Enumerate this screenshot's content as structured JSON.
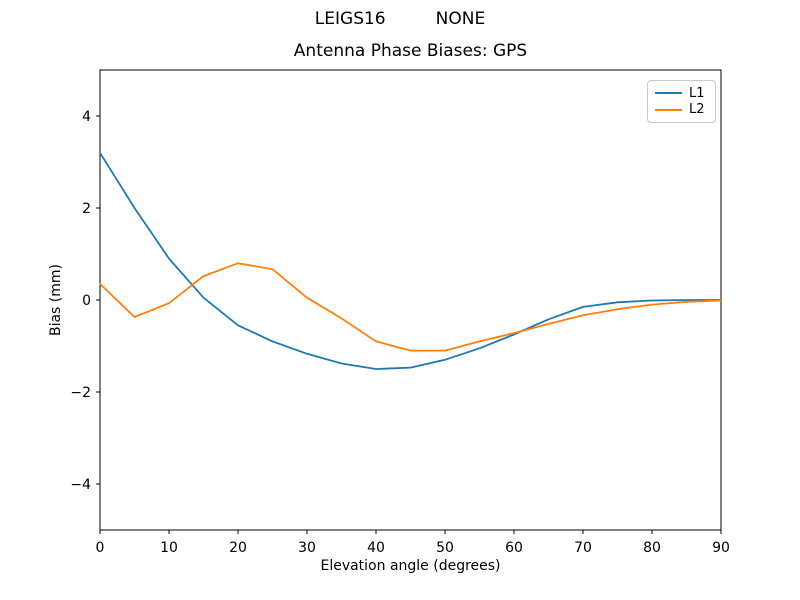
{
  "figure": {
    "suptitle_left": "LEIGS16",
    "suptitle_right": "NONE",
    "axes_title": "Antenna Phase Biases: GPS"
  },
  "chart_data": {
    "type": "line",
    "suptitle": "LEIGS16        NONE",
    "title": "Antenna Phase Biases: GPS",
    "xlabel": "Elevation angle (degrees)",
    "ylabel": "Bias (mm)",
    "xlim": [
      0,
      90
    ],
    "ylim": [
      -5,
      5
    ],
    "xticks": [
      0,
      10,
      20,
      30,
      40,
      50,
      60,
      70,
      80,
      90
    ],
    "yticks": [
      -4,
      -2,
      0,
      2,
      4
    ],
    "grid": false,
    "legend_position": "upper-right",
    "x": [
      0,
      5,
      10,
      15,
      20,
      25,
      30,
      35,
      40,
      45,
      50,
      55,
      60,
      65,
      70,
      75,
      80,
      85,
      90
    ],
    "series": [
      {
        "name": "L1",
        "color": "#1f77b4",
        "values": [
          3.2,
          2.0,
          0.9,
          0.05,
          -0.55,
          -0.9,
          -1.17,
          -1.38,
          -1.5,
          -1.47,
          -1.3,
          -1.05,
          -0.75,
          -0.42,
          -0.15,
          -0.05,
          -0.01,
          0.0,
          0.0
        ]
      },
      {
        "name": "L2",
        "color": "#ff7f0e",
        "values": [
          0.35,
          -0.37,
          -0.07,
          0.52,
          0.8,
          0.67,
          0.05,
          -0.4,
          -0.9,
          -1.1,
          -1.1,
          -0.9,
          -0.72,
          -0.52,
          -0.33,
          -0.2,
          -0.1,
          -0.04,
          -0.01
        ]
      }
    ]
  }
}
